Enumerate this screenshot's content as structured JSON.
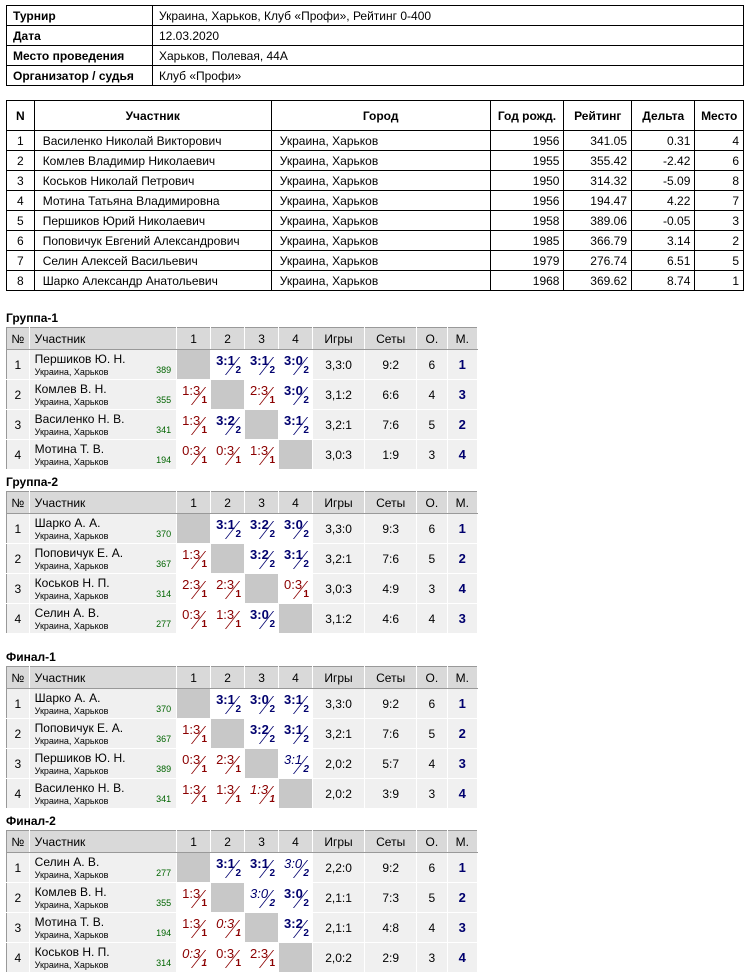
{
  "info": [
    {
      "k": "Турнир",
      "v": "Украина, Харьков, Клуб «Профи», Рейтинг 0-400"
    },
    {
      "k": "Дата",
      "v": "12.03.2020"
    },
    {
      "k": "Место проведения",
      "v": "Харьков, Полевая, 44А"
    },
    {
      "k": "Организатор / судья",
      "v": "Клуб «Профи»"
    }
  ],
  "participants": {
    "headers": [
      "N",
      "Участник",
      "Город",
      "Год рожд.",
      "Рейтинг",
      "Дельта",
      "Место"
    ],
    "rows": [
      [
        "1",
        "Василенко Николай Викторович",
        "Украина, Харьков",
        "1956",
        "341.05",
        "0.31",
        "4"
      ],
      [
        "2",
        "Комлев Владимир Николаевич",
        "Украина, Харьков",
        "1955",
        "355.42",
        "-2.42",
        "6"
      ],
      [
        "3",
        "Коськов Николай Петрович",
        "Украина, Харьков",
        "1950",
        "314.32",
        "-5.09",
        "8"
      ],
      [
        "4",
        "Мотина Татьяна Владимировна",
        "Украина, Харьков",
        "1956",
        "194.47",
        "4.22",
        "7"
      ],
      [
        "5",
        "Першиков Юрий Николаевич",
        "Украина, Харьков",
        "1958",
        "389.06",
        "-0.05",
        "3"
      ],
      [
        "6",
        "Поповичук Евгений Александрович",
        "Украина, Харьков",
        "1985",
        "366.79",
        "3.14",
        "2"
      ],
      [
        "7",
        "Селин Алексей Васильевич",
        "Украина, Харьков",
        "1979",
        "276.74",
        "6.51",
        "5"
      ],
      [
        "8",
        "Шарко Александр Анатольевич",
        "Украина, Харьков",
        "1968",
        "369.62",
        "8.74",
        "1"
      ]
    ]
  },
  "group_headers": [
    "№",
    "Участник",
    "1",
    "2",
    "3",
    "4",
    "Игры",
    "Сеты",
    "О.",
    "М."
  ],
  "groups": [
    {
      "title": "Группа-1",
      "rows": [
        {
          "no": "1",
          "name": "Першиков Ю. Н.",
          "city": "Украина, Харьков",
          "rating": "389",
          "cells": [
            null,
            {
              "s": "3:1",
              "p": "2",
              "t": "w"
            },
            {
              "s": "3:1",
              "p": "2",
              "t": "w"
            },
            {
              "s": "3:0",
              "p": "2",
              "t": "w"
            }
          ],
          "games": "3,3:0",
          "sets": "9:2",
          "pts": "6",
          "place": "1"
        },
        {
          "no": "2",
          "name": "Комлев В. Н.",
          "city": "Украина, Харьков",
          "rating": "355",
          "cells": [
            {
              "s": "1:3",
              "p": "1",
              "t": "l"
            },
            null,
            {
              "s": "2:3",
              "p": "1",
              "t": "l"
            },
            {
              "s": "3:0",
              "p": "2",
              "t": "w"
            }
          ],
          "games": "3,1:2",
          "sets": "6:6",
          "pts": "4",
          "place": "3"
        },
        {
          "no": "3",
          "name": "Василенко Н. В.",
          "city": "Украина, Харьков",
          "rating": "341",
          "cells": [
            {
              "s": "1:3",
              "p": "1",
              "t": "l"
            },
            {
              "s": "3:2",
              "p": "2",
              "t": "w"
            },
            null,
            {
              "s": "3:1",
              "p": "2",
              "t": "w"
            }
          ],
          "games": "3,2:1",
          "sets": "7:6",
          "pts": "5",
          "place": "2"
        },
        {
          "no": "4",
          "name": "Мотина Т. В.",
          "city": "Украина, Харьков",
          "rating": "194",
          "cells": [
            {
              "s": "0:3",
              "p": "1",
              "t": "l"
            },
            {
              "s": "0:3",
              "p": "1",
              "t": "l"
            },
            {
              "s": "1:3",
              "p": "1",
              "t": "l"
            },
            null
          ],
          "games": "3,0:3",
          "sets": "1:9",
          "pts": "3",
          "place": "4"
        }
      ]
    },
    {
      "title": "Группа-2",
      "rows": [
        {
          "no": "1",
          "name": "Шарко А. А.",
          "city": "Украина, Харьков",
          "rating": "370",
          "cells": [
            null,
            {
              "s": "3:1",
              "p": "2",
              "t": "w"
            },
            {
              "s": "3:2",
              "p": "2",
              "t": "w"
            },
            {
              "s": "3:0",
              "p": "2",
              "t": "w"
            }
          ],
          "games": "3,3:0",
          "sets": "9:3",
          "pts": "6",
          "place": "1"
        },
        {
          "no": "2",
          "name": "Поповичук Е. А.",
          "city": "Украина, Харьков",
          "rating": "367",
          "cells": [
            {
              "s": "1:3",
              "p": "1",
              "t": "l"
            },
            null,
            {
              "s": "3:2",
              "p": "2",
              "t": "w"
            },
            {
              "s": "3:1",
              "p": "2",
              "t": "w"
            }
          ],
          "games": "3,2:1",
          "sets": "7:6",
          "pts": "5",
          "place": "2"
        },
        {
          "no": "3",
          "name": "Коськов Н. П.",
          "city": "Украина, Харьков",
          "rating": "314",
          "cells": [
            {
              "s": "2:3",
              "p": "1",
              "t": "l"
            },
            {
              "s": "2:3",
              "p": "1",
              "t": "l"
            },
            null,
            {
              "s": "0:3",
              "p": "1",
              "t": "l"
            }
          ],
          "games": "3,0:3",
          "sets": "4:9",
          "pts": "3",
          "place": "4"
        },
        {
          "no": "4",
          "name": "Селин А. В.",
          "city": "Украина, Харьков",
          "rating": "277",
          "cells": [
            {
              "s": "0:3",
              "p": "1",
              "t": "l"
            },
            {
              "s": "1:3",
              "p": "1",
              "t": "l"
            },
            {
              "s": "3:0",
              "p": "2",
              "t": "w"
            },
            null
          ],
          "games": "3,1:2",
          "sets": "4:6",
          "pts": "4",
          "place": "3"
        }
      ]
    },
    {
      "title": "Финал-1",
      "rows": [
        {
          "no": "1",
          "name": "Шарко А. А.",
          "city": "Украина, Харьков",
          "rating": "370",
          "cells": [
            null,
            {
              "s": "3:1",
              "p": "2",
              "t": "w"
            },
            {
              "s": "3:0",
              "p": "2",
              "t": "w"
            },
            {
              "s": "3:1",
              "p": "2",
              "t": "w"
            }
          ],
          "games": "3,3:0",
          "sets": "9:2",
          "pts": "6",
          "place": "1"
        },
        {
          "no": "2",
          "name": "Поповичук Е. А.",
          "city": "Украина, Харьков",
          "rating": "367",
          "cells": [
            {
              "s": "1:3",
              "p": "1",
              "t": "l"
            },
            null,
            {
              "s": "3:2",
              "p": "2",
              "t": "w"
            },
            {
              "s": "3:1",
              "p": "2",
              "t": "w"
            }
          ],
          "games": "3,2:1",
          "sets": "7:6",
          "pts": "5",
          "place": "2"
        },
        {
          "no": "3",
          "name": "Першиков Ю. Н.",
          "city": "Украина, Харьков",
          "rating": "389",
          "cells": [
            {
              "s": "0:3",
              "p": "1",
              "t": "l"
            },
            {
              "s": "2:3",
              "p": "1",
              "t": "l"
            },
            null,
            {
              "s": "3:1",
              "p": "2",
              "t": "tw"
            }
          ],
          "games": "2,0:2",
          "sets": "5:7",
          "pts": "4",
          "place": "3"
        },
        {
          "no": "4",
          "name": "Василенко Н. В.",
          "city": "Украина, Харьков",
          "rating": "341",
          "cells": [
            {
              "s": "1:3",
              "p": "1",
              "t": "l"
            },
            {
              "s": "1:3",
              "p": "1",
              "t": "l"
            },
            {
              "s": "1:3",
              "p": "1",
              "t": "tl"
            },
            null
          ],
          "games": "2,0:2",
          "sets": "3:9",
          "pts": "3",
          "place": "4"
        }
      ]
    },
    {
      "title": "Финал-2",
      "rows": [
        {
          "no": "1",
          "name": "Селин А. В.",
          "city": "Украина, Харьков",
          "rating": "277",
          "cells": [
            null,
            {
              "s": "3:1",
              "p": "2",
              "t": "w"
            },
            {
              "s": "3:1",
              "p": "2",
              "t": "w"
            },
            {
              "s": "3:0",
              "p": "2",
              "t": "tw"
            }
          ],
          "games": "2,2:0",
          "sets": "9:2",
          "pts": "6",
          "place": "1"
        },
        {
          "no": "2",
          "name": "Комлев В. Н.",
          "city": "Украина, Харьков",
          "rating": "355",
          "cells": [
            {
              "s": "1:3",
              "p": "1",
              "t": "l"
            },
            null,
            {
              "s": "3:0",
              "p": "2",
              "t": "tw"
            },
            {
              "s": "3:0",
              "p": "2",
              "t": "w"
            }
          ],
          "games": "2,1:1",
          "sets": "7:3",
          "pts": "5",
          "place": "2"
        },
        {
          "no": "3",
          "name": "Мотина Т. В.",
          "city": "Украина, Харьков",
          "rating": "194",
          "cells": [
            {
              "s": "1:3",
              "p": "1",
              "t": "l"
            },
            {
              "s": "0:3",
              "p": "1",
              "t": "tl"
            },
            null,
            {
              "s": "3:2",
              "p": "2",
              "t": "w"
            }
          ],
          "games": "2,1:1",
          "sets": "4:8",
          "pts": "4",
          "place": "3"
        },
        {
          "no": "4",
          "name": "Коськов Н. П.",
          "city": "Украина, Харьков",
          "rating": "314",
          "cells": [
            {
              "s": "0:3",
              "p": "1",
              "t": "tl"
            },
            {
              "s": "0:3",
              "p": "1",
              "t": "l"
            },
            {
              "s": "2:3",
              "p": "1",
              "t": "l"
            },
            null
          ],
          "games": "2,0:2",
          "sets": "2:9",
          "pts": "3",
          "place": "4"
        }
      ]
    }
  ]
}
